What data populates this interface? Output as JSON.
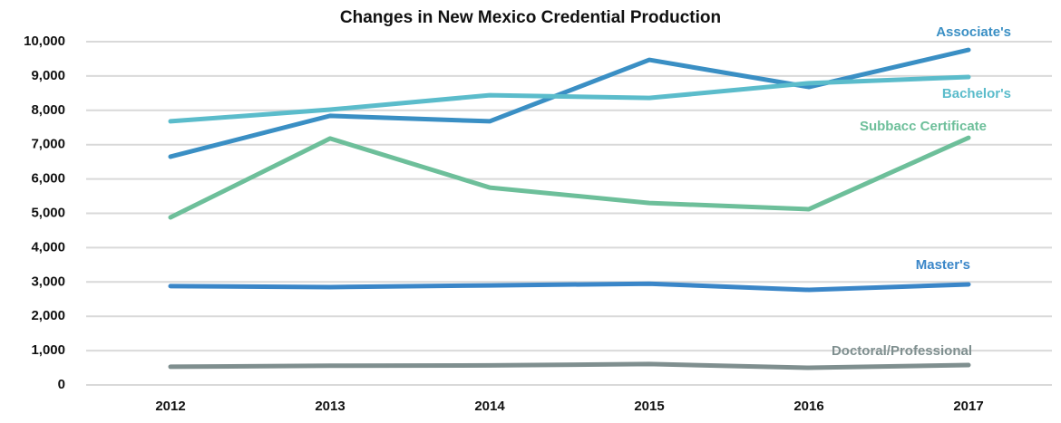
{
  "chart_data": {
    "type": "line",
    "title": "Changes in New Mexico Credential Production",
    "categories": [
      "2012",
      "2013",
      "2014",
      "2015",
      "2016",
      "2017"
    ],
    "series": [
      {
        "name": "Associate's",
        "color": "#3a8fc4",
        "values": [
          6650,
          7840,
          7680,
          9470,
          8680,
          9760
        ]
      },
      {
        "name": "Bachelor's",
        "color": "#5bbccb",
        "values": [
          7680,
          8020,
          8440,
          8360,
          8790,
          8970
        ]
      },
      {
        "name": "Subbacc Certificate",
        "color": "#6dbf9a",
        "values": [
          4880,
          7180,
          5750,
          5300,
          5120,
          7200
        ]
      },
      {
        "name": "Master's",
        "color": "#3a86c8",
        "values": [
          2880,
          2850,
          2900,
          2950,
          2770,
          2930
        ]
      },
      {
        "name": "Doctoral/Professional",
        "color": "#7f8f8f",
        "values": [
          530,
          560,
          570,
          610,
          500,
          580
        ]
      }
    ],
    "ylim": [
      0,
      10000
    ],
    "yticks": [
      0,
      {
        "value": 1000,
        "label": "1,000"
      },
      {
        "value": 2000,
        "label": "2,000"
      },
      {
        "value": 3000,
        "label": "3,000"
      },
      {
        "value": 4000,
        "label": "4,000"
      },
      {
        "value": 5000,
        "label": "5,000"
      },
      {
        "value": 6000,
        "label": "6,000"
      },
      {
        "value": 7000,
        "label": "7,000"
      },
      {
        "value": 8000,
        "label": "8,000"
      },
      {
        "value": 9000,
        "label": "9,000"
      },
      {
        "value": 10000,
        "label": "10,000"
      }
    ],
    "grid": true
  }
}
